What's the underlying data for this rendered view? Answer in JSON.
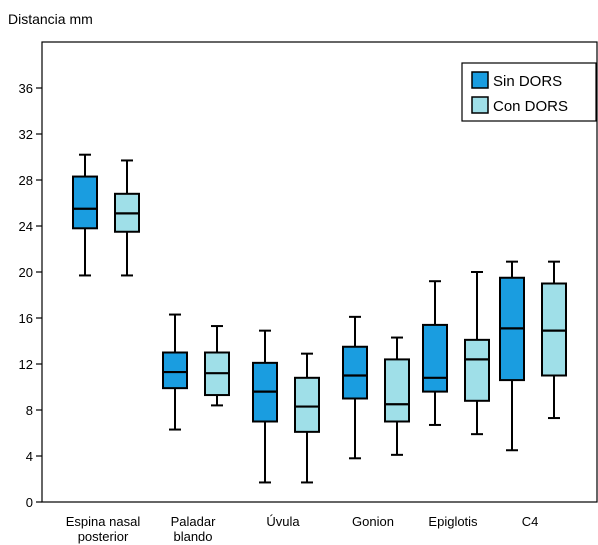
{
  "chart_data": {
    "type": "boxplot",
    "ylabel": "Distancia mm",
    "ylim": [
      0,
      40
    ],
    "yticks": [
      0,
      4,
      8,
      12,
      16,
      20,
      24,
      28,
      32,
      36
    ],
    "grid": false,
    "legend_position": "top-right",
    "categories": [
      {
        "lines": [
          "Espina nasal",
          "posterior"
        ]
      },
      {
        "lines": [
          "Paladar",
          "blando"
        ]
      },
      {
        "lines": [
          "Úvula"
        ]
      },
      {
        "lines": [
          "Gonion"
        ]
      },
      {
        "lines": [
          "Epiglotis"
        ]
      },
      {
        "lines": [
          "C4"
        ]
      }
    ],
    "series": [
      {
        "name": "Sin DORS",
        "color": "#1a9de0",
        "boxes": [
          {
            "min": 19.7,
            "q1": 23.8,
            "median": 25.5,
            "q3": 28.3,
            "max": 30.2
          },
          {
            "min": 6.3,
            "q1": 9.9,
            "median": 11.3,
            "q3": 13.0,
            "max": 16.3
          },
          {
            "min": 1.7,
            "q1": 7.0,
            "median": 9.6,
            "q3": 12.1,
            "max": 14.9
          },
          {
            "min": 3.8,
            "q1": 9.0,
            "median": 11.0,
            "q3": 13.5,
            "max": 16.1
          },
          {
            "min": 6.7,
            "q1": 9.6,
            "median": 10.8,
            "q3": 15.4,
            "max": 19.2
          },
          {
            "min": 4.5,
            "q1": 10.6,
            "median": 15.1,
            "q3": 19.5,
            "max": 20.9
          }
        ]
      },
      {
        "name": "Con DORS",
        "color": "#9fdfe8",
        "boxes": [
          {
            "min": 19.7,
            "q1": 23.5,
            "median": 25.1,
            "q3": 26.8,
            "max": 29.7
          },
          {
            "min": 8.4,
            "q1": 9.3,
            "median": 11.2,
            "q3": 13.0,
            "max": 15.3
          },
          {
            "min": 1.7,
            "q1": 6.1,
            "median": 8.3,
            "q3": 10.8,
            "max": 12.9
          },
          {
            "min": 4.1,
            "q1": 7.0,
            "median": 8.5,
            "q3": 12.4,
            "max": 14.3
          },
          {
            "min": 5.9,
            "q1": 8.8,
            "median": 12.4,
            "q3": 14.1,
            "max": 20.0
          },
          {
            "min": 7.3,
            "q1": 11.0,
            "median": 14.9,
            "q3": 19.0,
            "max": 20.9
          }
        ]
      }
    ]
  }
}
